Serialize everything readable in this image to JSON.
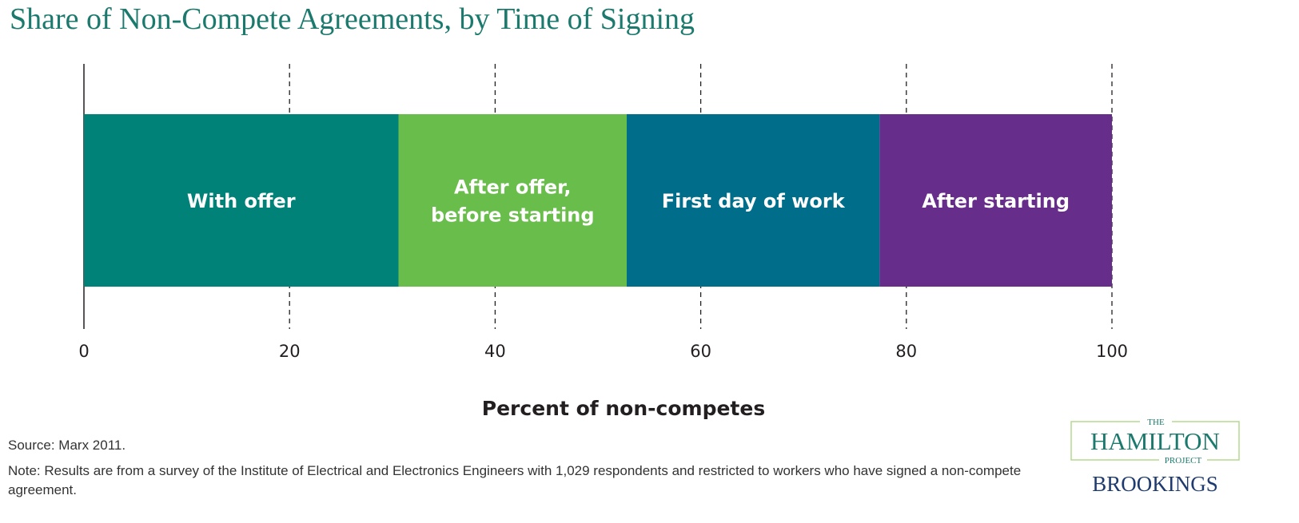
{
  "title": "Share of Non-Compete Agreements, by Time of Signing",
  "chart_data": {
    "type": "bar",
    "orientation": "horizontal-stacked",
    "title": "Share of Non-Compete Agreements, by Time of Signing",
    "xlabel": "Percent of non-competes",
    "ylabel": "",
    "xlim": [
      0,
      100
    ],
    "xticks": [
      0,
      20,
      40,
      60,
      80,
      100
    ],
    "grid": "dashed vertical",
    "segments": [
      {
        "label": "With offer",
        "lines": [
          "With offer"
        ],
        "value": 30.6,
        "color": "#008278"
      },
      {
        "label": "After offer, before starting",
        "lines": [
          "After offer,",
          "before starting"
        ],
        "value": 22.2,
        "color": "#69bd4b"
      },
      {
        "label": "First day of work",
        "lines": [
          "First day of work"
        ],
        "value": 24.6,
        "color": "#006e8b"
      },
      {
        "label": "After starting",
        "lines": [
          "After starting"
        ],
        "value": 22.6,
        "color": "#672d8a"
      }
    ]
  },
  "footer": {
    "source": "Source: Marx 2011.",
    "note": "Note: Results are from a survey of the Institute of Electrical and Electronics Engineers with 1,029 respondents and restricted to workers who have signed a non-compete agreement."
  },
  "logo": {
    "the": "THE",
    "hamilton": "HAMILTON",
    "project": "PROJECT",
    "brookings": "BROOKINGS",
    "green": "#1b7a6d",
    "navy": "#1f3a6e"
  }
}
